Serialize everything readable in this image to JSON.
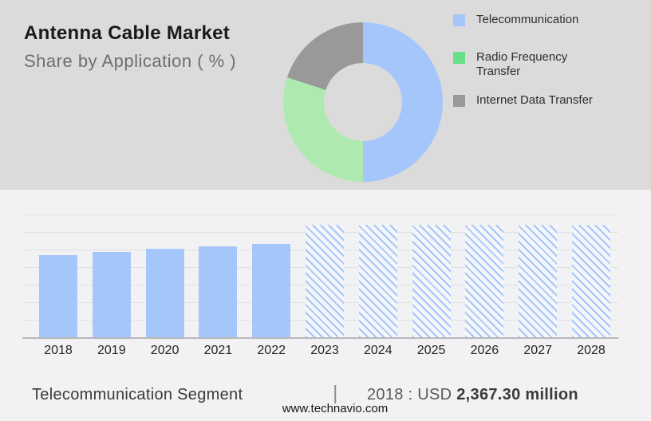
{
  "header": {
    "title": "Antenna Cable Market",
    "subtitle": "Share by Application ( % )"
  },
  "legend": [
    {
      "label": "Telecommunication",
      "color": "#a5c6fa"
    },
    {
      "label": "Radio Frequency Transfer",
      "color": "#68df89"
    },
    {
      "label": "Internet Data Transfer",
      "color": "#999999"
    }
  ],
  "chart_data": [
    {
      "type": "pie",
      "subtype": "donut",
      "title": "Antenna Cable Market — Share by Application ( % )",
      "labels": [
        "Telecommunication",
        "Radio Frequency Transfer",
        "Internet Data Transfer"
      ],
      "values": [
        50,
        30,
        20
      ],
      "unit": "%",
      "colors": [
        "#a5c6fa",
        "#aeeab0",
        "#999999"
      ],
      "hole_ratio": 0.49,
      "start_angle_deg": 0,
      "legend_position": "right"
    },
    {
      "type": "bar",
      "categories": [
        "2018",
        "2019",
        "2020",
        "2021",
        "2022",
        "2023",
        "2024",
        "2025",
        "2026",
        "2027",
        "2028"
      ],
      "values": [
        2367.3,
        2450,
        2530,
        2600,
        2680,
        3225,
        3225,
        3225,
        3225,
        3225,
        3225
      ],
      "styles": [
        "solid",
        "solid",
        "solid",
        "solid",
        "solid",
        "hatched",
        "hatched",
        "hatched",
        "hatched",
        "hatched",
        "hatched"
      ],
      "ylim": [
        0,
        3525
      ],
      "grid": true,
      "gridline_count": 7,
      "bar_color": "#a5c6fa",
      "anchor_label": "2018 : USD 2,367.30 million"
    }
  ],
  "footer": {
    "segment_label": "Telecommunication Segment",
    "separator": "|",
    "value_prefix": "2018 : USD",
    "value_bold": "2,367.30 million",
    "website": "www.technavio.com"
  },
  "colors": {
    "top_bg": "#dbdbdb",
    "bottom_bg": "#f2f2f4",
    "bar_blue": "#a5c6fa",
    "donut_green": "#aeeab0",
    "legend_green": "#68df89",
    "donut_gray": "#999999",
    "grid": "#e1e1e3",
    "axis": "#b9b9bb",
    "title": "#1a1a1a",
    "subtitle": "#6e6e6e"
  }
}
